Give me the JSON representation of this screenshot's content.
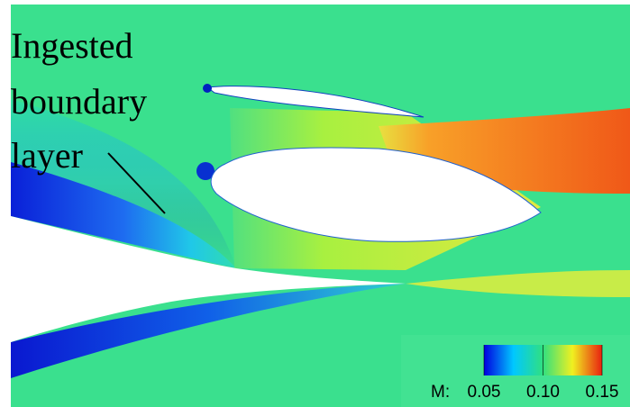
{
  "annotation": {
    "lines": [
      "Ingested",
      "boundary",
      "layer"
    ]
  },
  "colorbar": {
    "label": "M:",
    "range": [
      0.05,
      0.15
    ],
    "ticks": [
      0.05,
      {
        "value": 0.1,
        "label": "0.10"
      },
      0.15
    ]
  }
}
